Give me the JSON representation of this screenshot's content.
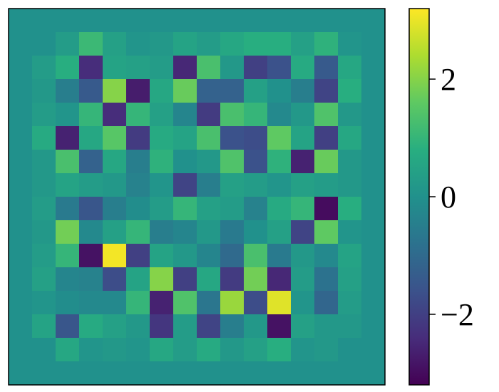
{
  "chart_data": {
    "type": "heatmap",
    "colormap": "viridis",
    "vmin": -3.2,
    "vmax": 3.2,
    "rows": 16,
    "cols": 16,
    "values": [
      [
        0.0,
        0.0,
        0.0,
        0.0,
        0.0,
        0.0,
        0.0,
        0.0,
        0.0,
        0.0,
        0.0,
        0.0,
        0.0,
        0.0,
        0.0,
        0.0
      ],
      [
        0.0,
        0.0,
        0.3,
        1.1,
        0.4,
        0.1,
        0.2,
        0.5,
        0.3,
        0.6,
        0.8,
        0.8,
        0.4,
        0.9,
        0.1,
        0.0
      ],
      [
        0.0,
        0.3,
        0.8,
        -2.4,
        0.5,
        0.4,
        0.3,
        -2.5,
        1.3,
        0.2,
        -2.0,
        -1.6,
        0.7,
        -1.4,
        0.6,
        0.0
      ],
      [
        0.0,
        0.2,
        -0.5,
        -1.4,
        2.0,
        -2.7,
        0.6,
        1.7,
        -1.2,
        -1.2,
        0.4,
        0.0,
        -0.5,
        -1.9,
        0.8,
        0.0
      ],
      [
        0.0,
        0.3,
        0.1,
        1.0,
        -2.4,
        1.0,
        0.4,
        -0.3,
        -2.1,
        1.3,
        1.0,
        -0.2,
        0.2,
        1.4,
        0.2,
        0.0
      ],
      [
        0.0,
        0.7,
        -2.6,
        0.6,
        1.5,
        -2.1,
        0.7,
        0.5,
        1.3,
        -1.6,
        -1.7,
        1.6,
        0.5,
        -2.0,
        0.6,
        0.0
      ],
      [
        0.0,
        0.2,
        1.3,
        -1.2,
        0.6,
        -0.5,
        0.9,
        0.0,
        0.2,
        1.4,
        -1.6,
        0.9,
        -2.6,
        1.7,
        0.2,
        0.0
      ],
      [
        0.0,
        0.2,
        0.5,
        0.3,
        0.2,
        -0.4,
        0.1,
        -1.9,
        -0.5,
        0.4,
        0.3,
        0.1,
        0.4,
        0.3,
        0.2,
        0.0
      ],
      [
        0.0,
        0.3,
        -0.6,
        -1.5,
        -0.5,
        -0.1,
        0.3,
        1.0,
        0.4,
        0.3,
        -0.4,
        0.7,
        1.0,
        -3.0,
        0.8,
        0.0
      ],
      [
        0.0,
        0.2,
        1.8,
        -0.2,
        0.4,
        1.0,
        -0.5,
        -0.3,
        0.2,
        -0.6,
        0.0,
        0.4,
        -1.9,
        1.6,
        0.1,
        0.0
      ],
      [
        0.0,
        0.3,
        1.0,
        -2.9,
        3.1,
        -2.0,
        0.5,
        0.2,
        -0.3,
        -1.0,
        1.3,
        -0.6,
        0.2,
        -0.2,
        0.5,
        0.0
      ],
      [
        0.0,
        0.4,
        -0.3,
        -0.4,
        -1.7,
        0.5,
        2.0,
        -2.0,
        0.6,
        -2.1,
        1.8,
        -2.5,
        0.3,
        -0.8,
        0.4,
        0.0
      ],
      [
        0.0,
        0.1,
        -0.1,
        -0.2,
        -0.2,
        1.0,
        -2.6,
        1.4,
        -0.7,
        2.2,
        -1.7,
        2.9,
        0.1,
        -1.1,
        0.3,
        0.0
      ],
      [
        0.0,
        0.5,
        -1.5,
        0.7,
        0.4,
        0.2,
        -2.2,
        0.3,
        -1.9,
        -0.5,
        0.2,
        -2.9,
        0.4,
        0.2,
        0.2,
        0.0
      ],
      [
        0.0,
        0.0,
        0.6,
        0.1,
        0.2,
        0.1,
        0.6,
        0.3,
        0.7,
        0.2,
        0.4,
        0.8,
        0.1,
        0.2,
        0.0,
        0.0
      ],
      [
        0.0,
        0.0,
        0.0,
        0.0,
        0.0,
        0.0,
        0.0,
        0.0,
        0.0,
        0.0,
        0.0,
        0.0,
        0.0,
        0.0,
        0.0,
        0.0
      ]
    ],
    "colorbar": {
      "ticks": [
        2,
        0,
        -2
      ],
      "tick_labels": [
        "2",
        "0",
        "−2"
      ]
    }
  }
}
